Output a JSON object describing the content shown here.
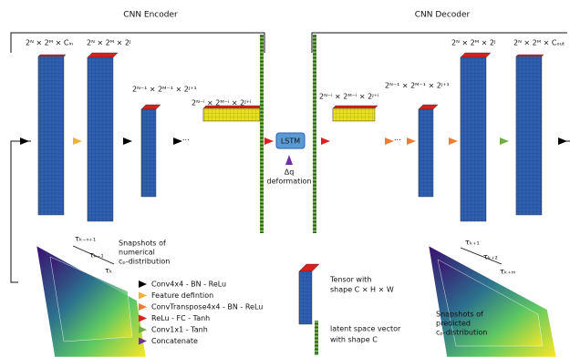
{
  "encoder_title": "CNN Encoder",
  "decoder_title": "CNN Decoder",
  "encoder_labels": [
    "2ᴺ × 2ᴹ × Cᵢₙ",
    "2ᴺ × 2ᴹ × 2ᴶ",
    "2ᴺ⁻¹ × 2ᴹ⁻¹ × 2ᴶ⁺¹",
    "2ᴺ⁻ⁱ × 2ᴹ⁻ⁱ × 2ᴶ⁺ⁱ"
  ],
  "decoder_labels": [
    "2ᴺ⁻ⁱ × 2ᴹ⁻ⁱ × 2ᴶ⁺ⁱ",
    "2ᴺ⁻¹ × 2ᴹ⁻¹ × 2ᴶ⁺¹",
    "2ᴺ × 2ᴹ × 2ᴶ",
    "2ᴺ × 2ᴹ × Cₒᵤₜ"
  ],
  "lstm": "LSTM",
  "dq": "Δq",
  "deformation": "deformation",
  "snapshots_numerical": [
    "Snapshots of",
    "numerical",
    "cₚ-distribution"
  ],
  "snapshots_predicted": [
    "Snapshots of",
    "predicted",
    "cₚ-distribution"
  ],
  "taus_left": [
    "τₖ₋ₙ₊₁",
    "τₖ₋₁",
    "τₖ"
  ],
  "taus_right": [
    "τₖ₊₁",
    "τₖ₊₂",
    "τₖ₊ₘ"
  ],
  "legend": [
    {
      "label": "Conv4x4 - BN - ReLu",
      "color": "#000000"
    },
    {
      "label": "Feature defintion",
      "color": "#f2b134"
    },
    {
      "label": "ConvTranspose4x4 - BN - ReLu",
      "color": "#ed7d31"
    },
    {
      "label": "ReLu - FC - Tanh",
      "color": "#e02020"
    },
    {
      "label": "Conv1x1 - Tanh",
      "color": "#70ad47"
    },
    {
      "label": "Concatenate",
      "color": "#7030a0"
    }
  ],
  "tensor_note": [
    "Tensor with",
    "shape C × H × W"
  ],
  "latent_note": [
    "latent space vector",
    "with shape C"
  ]
}
